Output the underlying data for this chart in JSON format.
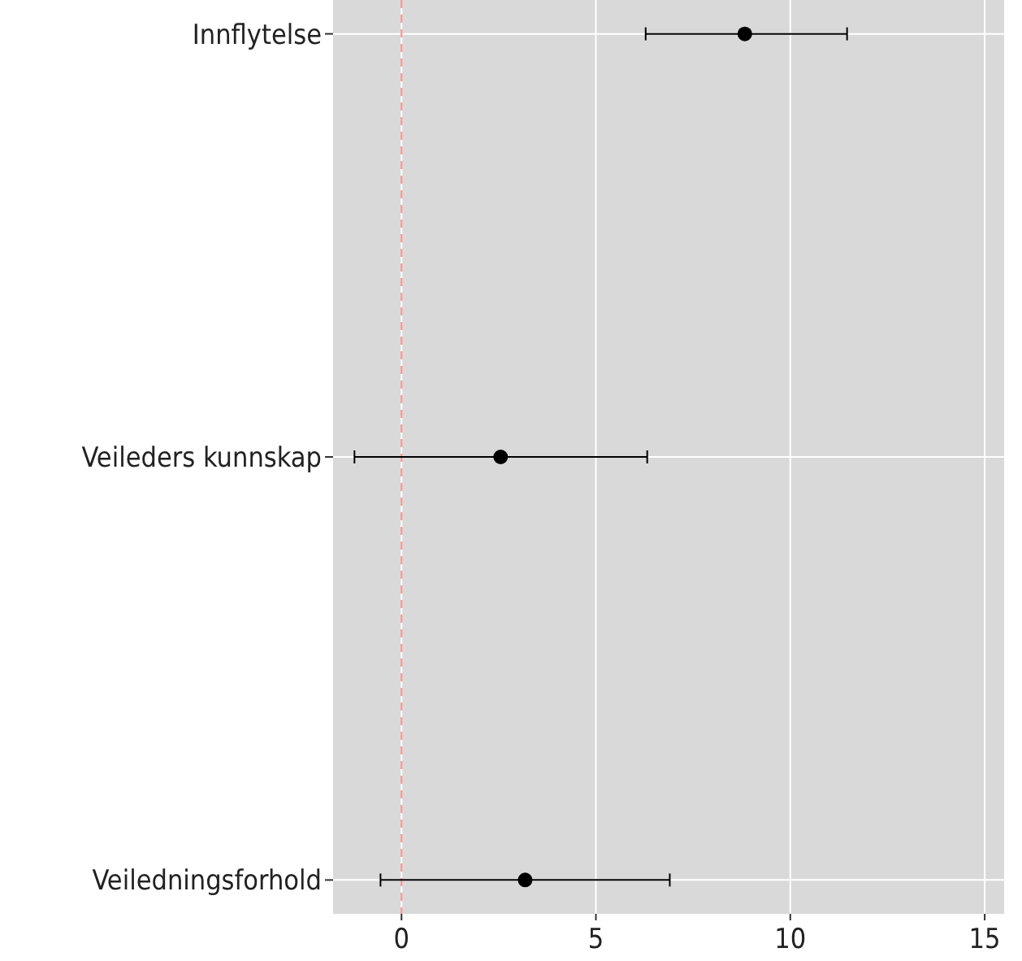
{
  "chart_data": {
    "type": "scatter",
    "orientation": "horizontal",
    "categories": [
      "Innflytelse",
      "Veileders kunnskap",
      "Veiledningsforhold"
    ],
    "values": [
      8.83,
      2.55,
      3.18
    ],
    "errors": [
      [
        6.28,
        11.46
      ],
      [
        -1.21,
        6.32
      ],
      [
        -0.54,
        6.9
      ]
    ],
    "color": "#000000",
    "marker": "circle",
    "xlim": [
      -1.76,
      15.5
    ],
    "xticks": [
      0,
      5,
      10,
      15
    ],
    "grid": true,
    "ref_lines": [
      {
        "axis": "x",
        "value": 0,
        "color": "#ff9999",
        "line_style": "dashed"
      }
    ]
  }
}
